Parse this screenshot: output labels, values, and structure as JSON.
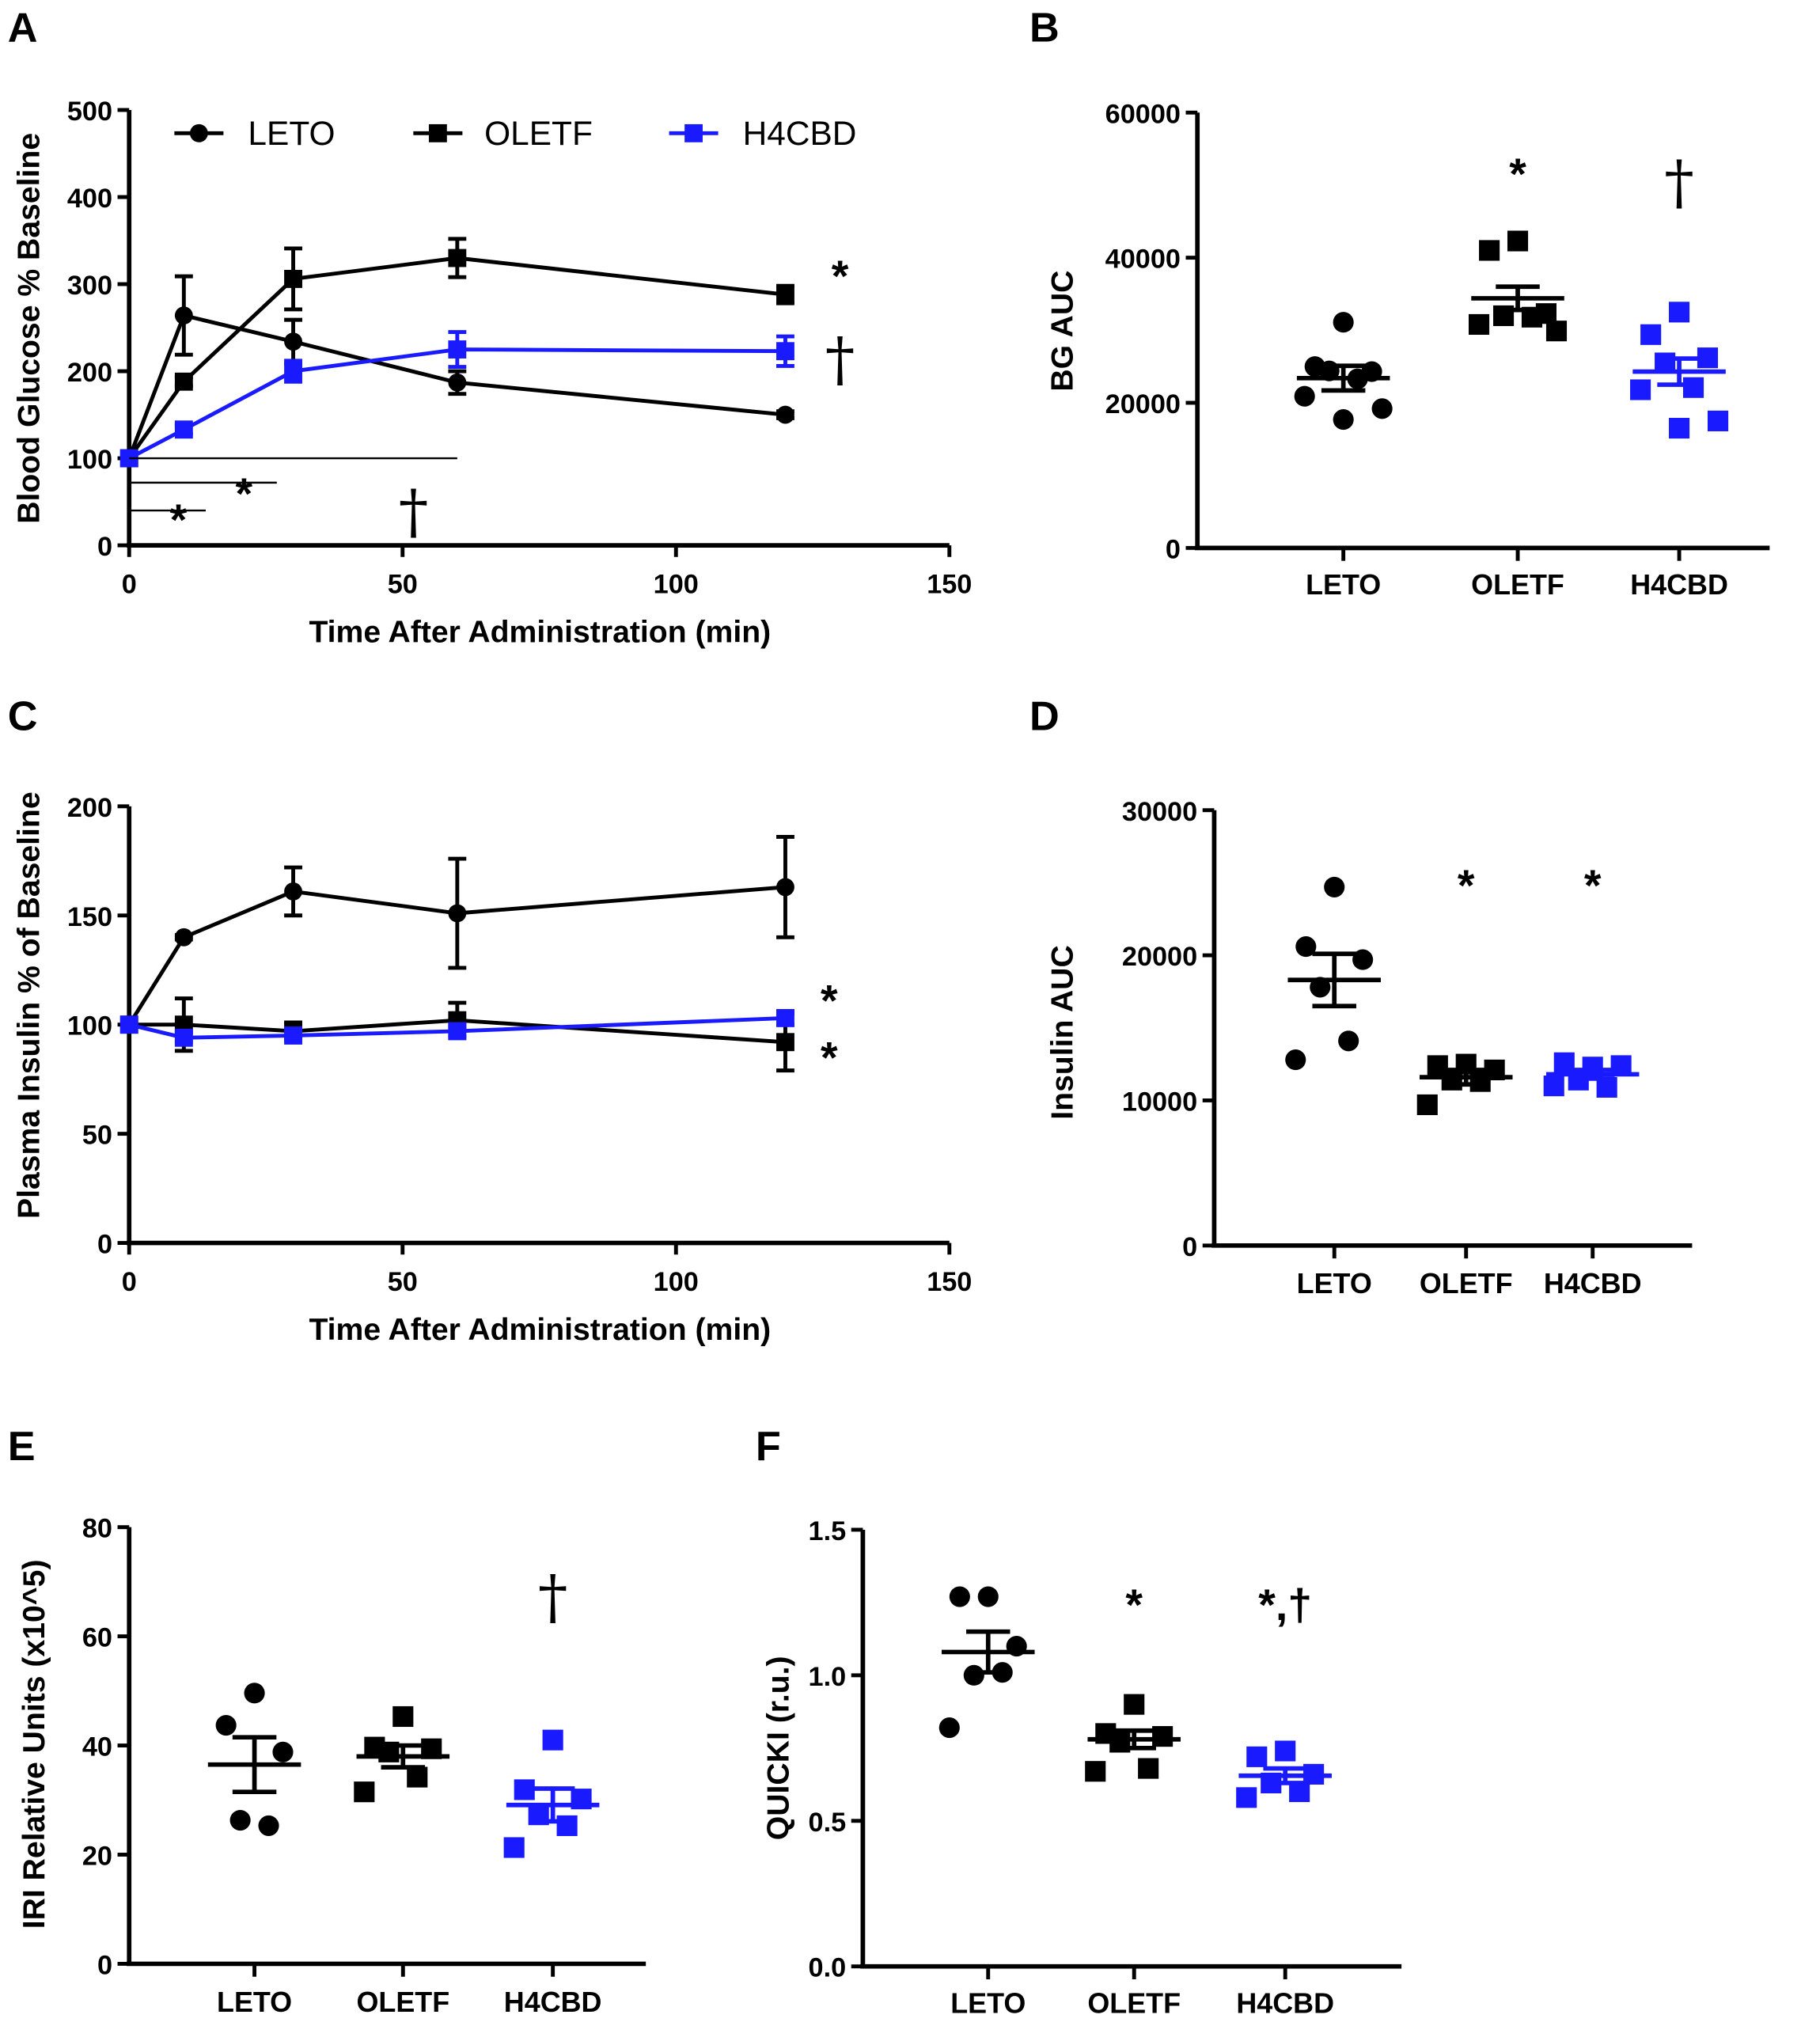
{
  "colors": {
    "LETO": "#000000",
    "OLETF": "#000000",
    "H4CBD": "#1a1aff"
  },
  "markers": {
    "LETO": "circle",
    "OLETF": "square",
    "H4CBD": "square"
  },
  "chart_data": [
    {
      "panel": "A",
      "type": "line",
      "xlabel": "Time After Administration (min)",
      "ylabel": "Blood Glucose % Baseline",
      "xlim": [
        0,
        150
      ],
      "ylim": [
        0,
        500
      ],
      "xticks": [
        "0",
        "50",
        "100",
        "150"
      ],
      "yticks": [
        "0",
        "100",
        "200",
        "300",
        "400",
        "500"
      ],
      "legend": {
        "placement": "top",
        "entries": [
          "LETO",
          "OLETF",
          "H4CBD"
        ]
      },
      "x": [
        0,
        10,
        30,
        60,
        120
      ],
      "series": [
        {
          "name": "LETO",
          "values": [
            100,
            264,
            234,
            187,
            150
          ],
          "sem": [
            0,
            45,
            25,
            13,
            4
          ]
        },
        {
          "name": "OLETF",
          "values": [
            100,
            188,
            306,
            330,
            288
          ],
          "sem": [
            0,
            5,
            35,
            22,
            10
          ]
        },
        {
          "name": "H4CBD",
          "values": [
            100,
            133,
            200,
            225,
            223
          ],
          "sem": [
            0,
            5,
            12,
            20,
            17
          ]
        }
      ],
      "significance_bars": [
        {
          "x1": 0,
          "x2": 60,
          "y": 100,
          "label": "†",
          "label_x": 52,
          "label_y": 15
        },
        {
          "x1": 0,
          "x2": 27,
          "y": 72,
          "label": "*",
          "label_x": 21,
          "label_y": 42
        },
        {
          "x1": 0,
          "x2": 14,
          "y": 40,
          "label": "*",
          "label_x": 9,
          "label_y": 12
        }
      ],
      "annotations": [
        {
          "text": "*",
          "x": 130,
          "y": 292
        },
        {
          "text": "†",
          "x": 130,
          "y": 190
        }
      ]
    },
    {
      "panel": "B",
      "type": "scatter",
      "ylabel": "BG AUC",
      "ylim": [
        0,
        60000
      ],
      "yticks": [
        "0",
        "20000",
        "40000",
        "60000"
      ],
      "categories": [
        "LETO",
        "OLETF",
        "H4CBD"
      ],
      "groups": [
        {
          "name": "LETO",
          "points": [
            31100,
            25000,
            24300,
            24400,
            23300,
            20900,
            19200,
            17700
          ],
          "mean": 23400,
          "sem": 1700,
          "annotation": ""
        },
        {
          "name": "OLETF",
          "points": [
            42300,
            41000,
            32300,
            32000,
            31800,
            30800,
            29900
          ],
          "mean": 34400,
          "sem": 1600,
          "annotation": "*"
        },
        {
          "name": "H4CBD",
          "points": [
            32500,
            29400,
            26200,
            25500,
            22100,
            21800,
            17500,
            16500
          ],
          "mean": 24300,
          "sem": 1800,
          "annotation": "†"
        }
      ]
    },
    {
      "panel": "C",
      "type": "line",
      "xlabel": "Time After Administration (min)",
      "ylabel": "Plasma Insulin % of Baseline",
      "xlim": [
        0,
        150
      ],
      "ylim": [
        0,
        200
      ],
      "xticks": [
        "0",
        "50",
        "100",
        "150"
      ],
      "yticks": [
        "0",
        "50",
        "100",
        "150",
        "200"
      ],
      "x": [
        0,
        10,
        30,
        60,
        120
      ],
      "series": [
        {
          "name": "LETO",
          "values": [
            100,
            140,
            161,
            151,
            163
          ],
          "sem": [
            0,
            1,
            11,
            25,
            23
          ]
        },
        {
          "name": "OLETF",
          "values": [
            100,
            100,
            97,
            102,
            92
          ],
          "sem": [
            0,
            12,
            4,
            8,
            13
          ]
        },
        {
          "name": "H4CBD",
          "values": [
            100,
            94,
            95,
            97,
            103
          ],
          "sem": [
            0,
            2,
            2,
            2,
            3
          ]
        }
      ],
      "annotations": [
        {
          "text": "*",
          "x": 128,
          "y": 104
        },
        {
          "text": "*",
          "x": 128,
          "y": 78
        }
      ]
    },
    {
      "panel": "D",
      "type": "scatter",
      "ylabel": "Insulin AUC",
      "ylim": [
        0,
        30000
      ],
      "yticks": [
        "0",
        "10000",
        "20000",
        "30000"
      ],
      "categories": [
        "LETO",
        "OLETF",
        "H4CBD"
      ],
      "groups": [
        {
          "name": "LETO",
          "points": [
            24700,
            20600,
            19700,
            17800,
            14100,
            12800
          ],
          "mean": 18300,
          "sem": 1800,
          "annotation": ""
        },
        {
          "name": "OLETF",
          "points": [
            12500,
            12400,
            12100,
            11400,
            11300,
            9700
          ],
          "mean": 11600,
          "sem": 500,
          "annotation": "*"
        },
        {
          "name": "H4CBD",
          "points": [
            12300,
            12600,
            12400,
            11400,
            10900,
            11000
          ],
          "mean": 11800,
          "sem": 300,
          "annotation": "*"
        }
      ]
    },
    {
      "panel": "E",
      "type": "scatter",
      "ylabel": "IRI Relative Units (x10^5)",
      "ylim": [
        0,
        80
      ],
      "yticks": [
        "0",
        "20",
        "40",
        "60",
        "80"
      ],
      "categories": [
        "LETO",
        "OLETF",
        "H4CBD"
      ],
      "groups": [
        {
          "name": "LETO",
          "points": [
            49.6,
            43.7,
            38.8,
            26.3,
            25.3
          ],
          "mean": 36.5,
          "sem": 5,
          "annotation": ""
        },
        {
          "name": "OLETF",
          "points": [
            45.3,
            39.7,
            39.4,
            38.8,
            34.2,
            31.5
          ],
          "mean": 38,
          "sem": 2,
          "annotation": ""
        },
        {
          "name": "H4CBD",
          "points": [
            41,
            31.9,
            30.2,
            27.3,
            25.3,
            21.3
          ],
          "mean": 29.1,
          "sem": 3,
          "annotation": "†"
        }
      ]
    },
    {
      "panel": "F",
      "type": "scatter",
      "ylabel": "QUICKI (r.u.)",
      "ylim": [
        0,
        1.5
      ],
      "yticks": [
        "0.0",
        "0.5",
        "1.0",
        "1.5"
      ],
      "categories": [
        "LETO",
        "OLETF",
        "H4CBD"
      ],
      "groups": [
        {
          "name": "LETO",
          "points": [
            1.27,
            1.27,
            1.1,
            1.0,
            1.01,
            0.82
          ],
          "mean": 1.08,
          "sem": 0.07,
          "annotation": ""
        },
        {
          "name": "OLETF",
          "points": [
            0.9,
            0.8,
            0.79,
            0.77,
            0.68,
            0.67
          ],
          "mean": 0.78,
          "sem": 0.03,
          "annotation": "*"
        },
        {
          "name": "H4CBD",
          "points": [
            0.74,
            0.72,
            0.66,
            0.63,
            0.6,
            0.58
          ],
          "mean": 0.655,
          "sem": 0.025,
          "annotation": "*,†"
        }
      ]
    }
  ]
}
